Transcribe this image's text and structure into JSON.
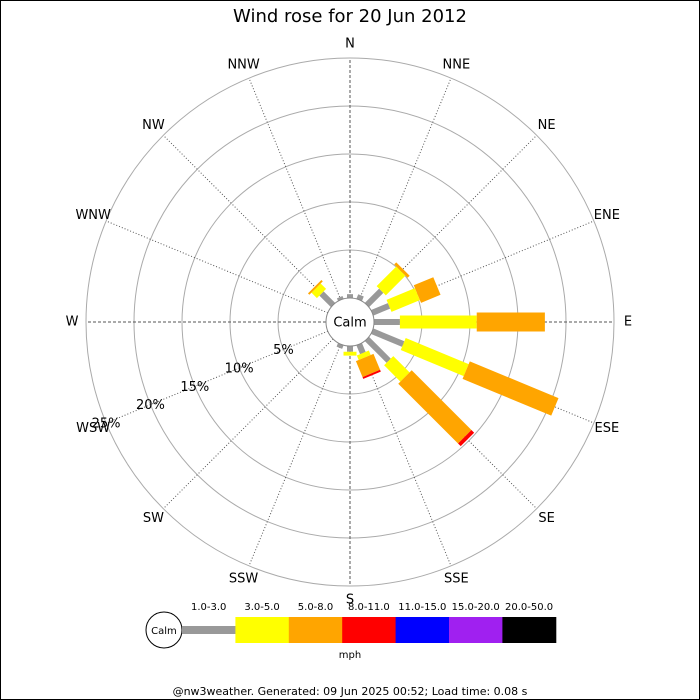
{
  "chart_data": {
    "type": "wind-rose",
    "title": "Wind rose for 20 Jun 2012",
    "calm_label": "Calm",
    "categories": [
      "N",
      "NNE",
      "NE",
      "ENE",
      "E",
      "ESE",
      "SE",
      "SSE",
      "S",
      "SSW",
      "SW",
      "WSW",
      "W",
      "WNW",
      "NW",
      "NNW"
    ],
    "series": [
      {
        "name": "1.0-3.0",
        "color": "#999999",
        "values": [
          0.4,
          0.5,
          2.1,
          1.9,
          2.7,
          3.5,
          3.2,
          1.0,
          0.6,
          0.4,
          0,
          0,
          0,
          0,
          1.7,
          0.3
        ]
      },
      {
        "name": "3.0-5.0",
        "color": "#ffff00",
        "values": [
          0,
          0,
          2.9,
          3.2,
          8.0,
          7.1,
          2.4,
          0.5,
          0.4,
          0,
          0,
          0,
          0,
          0,
          0.8,
          0
        ]
      },
      {
        "name": "5.0-8.0",
        "color": "#ffa500",
        "values": [
          0,
          0,
          0.3,
          2.2,
          7.1,
          10.0,
          8.8,
          1.8,
          0,
          0,
          0,
          0,
          0,
          0,
          0.2,
          0
        ]
      },
      {
        "name": "8.0-11.0",
        "color": "#ff0000",
        "values": [
          0,
          0,
          0,
          0,
          0,
          0,
          0.4,
          0.2,
          0,
          0,
          0,
          0,
          0,
          0,
          0,
          0
        ]
      },
      {
        "name": "11.0-15.0",
        "color": "#0000ff",
        "values": [
          0,
          0,
          0,
          0,
          0,
          0,
          0,
          0,
          0,
          0,
          0,
          0,
          0,
          0,
          0,
          0
        ]
      },
      {
        "name": "15.0-20.0",
        "color": "#a020f0",
        "values": [
          0,
          0,
          0,
          0,
          0,
          0,
          0,
          0,
          0,
          0,
          0,
          0,
          0,
          0,
          0,
          0
        ]
      },
      {
        "name": "20.0-50.0",
        "color": "#000000",
        "values": [
          0,
          0,
          0,
          0,
          0,
          0,
          0,
          0,
          0,
          0,
          0,
          0,
          0,
          0,
          0,
          0
        ]
      }
    ],
    "rlim": [
      0,
      25
    ],
    "rticks": [
      {
        "value": 5,
        "label": "5%"
      },
      {
        "value": 10,
        "label": "10%"
      },
      {
        "value": 15,
        "label": "15%"
      },
      {
        "value": 20,
        "label": "20%"
      },
      {
        "value": 25,
        "label": "25%"
      }
    ],
    "unit_label": "mph",
    "footer": "@nw3weather. Generated: 09 Jun 2025 00:52; Load time: 0.08 s"
  }
}
